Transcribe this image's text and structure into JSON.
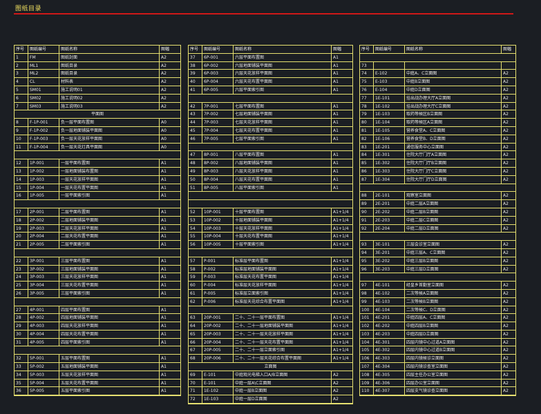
{
  "title": "图纸目录",
  "headers": [
    "序号",
    "图纸编号",
    "图纸名称",
    "图幅"
  ],
  "columns": [
    {
      "rows": [
        [
          "1",
          "FM",
          "图纸封面",
          "A2"
        ],
        [
          "2",
          "ML1",
          "图纸目录",
          "A2"
        ],
        [
          "3",
          "ML2",
          "图纸目录",
          "A2"
        ],
        [
          "4",
          "CL",
          "材料表",
          "A2"
        ],
        [
          "5",
          "SM01",
          "施工说明01",
          "A2"
        ],
        [
          "6",
          "SM02",
          "施工说明02",
          "A2"
        ],
        [
          "7",
          "SM03",
          "施工说明03",
          "A2"
        ],
        {
          "section": "平面图"
        },
        [
          "8",
          "F-1P-001",
          "负一层平面布置图",
          "A0"
        ],
        [
          "9",
          "F-1P-002",
          "负一层地面铺装平面图",
          "A0"
        ],
        [
          "10",
          "F-1P-003",
          "负一层天花放样平面图",
          "A0"
        ],
        [
          "11",
          "F-1P-004",
          "负一层天花灯具平面图",
          "A0"
        ],
        {
          "gap": true
        },
        [
          "12",
          "1P-001",
          "一层平面布置图",
          "A1"
        ],
        [
          "13",
          "1P-002",
          "一层地面铺装布置图",
          "A1"
        ],
        [
          "14",
          "1P-003",
          "一层天花放样平面图",
          "A1"
        ],
        [
          "15",
          "1P-004",
          "一层天花布置平面图",
          "A1"
        ],
        [
          "16",
          "1P-005",
          "一层平面索引图",
          "A1"
        ],
        {
          "gap": true
        },
        [
          "17",
          "2P-001",
          "二层平面布置图",
          "A1"
        ],
        [
          "18",
          "2P-002",
          "二层地面铺装平面图",
          "A1"
        ],
        [
          "19",
          "2P-003",
          "二层天花放样平面图",
          "A1"
        ],
        [
          "20",
          "2P-004",
          "二层天花布置平面图",
          "A1"
        ],
        [
          "21",
          "2P-005",
          "二层平面索引图",
          "A1"
        ],
        {
          "gap": true
        },
        [
          "22",
          "3P-001",
          "三层平面布置图",
          "A1"
        ],
        [
          "23",
          "3P-002",
          "三层地面铺装平面图",
          "A1"
        ],
        [
          "24",
          "3P-003",
          "三层天花放样平面图",
          "A1"
        ],
        [
          "25",
          "3P-004",
          "三层天花布置平面图",
          "A1"
        ],
        [
          "26",
          "3P-005",
          "三层平面索引图",
          "A1"
        ],
        {
          "gap": true
        },
        [
          "27",
          "4P-001",
          "四层平面布置图",
          "A1"
        ],
        [
          "28",
          "4P-002",
          "四层地面铺装平面图",
          "A1"
        ],
        [
          "29",
          "4P-003",
          "四层天花放样平面图",
          "A1"
        ],
        [
          "30",
          "4P-004",
          "四层天花布置平面图",
          "A1"
        ],
        [
          "31",
          "4P-005",
          "四层平面索引图",
          "A1"
        ],
        {
          "gap": true
        },
        [
          "32",
          "5P-001",
          "五层平面布置图",
          "A1"
        ],
        [
          "33",
          "5P-002",
          "五层地面铺装平面图",
          "A1"
        ],
        [
          "34",
          "5P-003",
          "五层天花放样平面图",
          "A1"
        ],
        [
          "35",
          "5P-004",
          "五层天花布置平面图",
          "A1"
        ],
        [
          "36",
          "5P-005",
          "五层平面索引图",
          "A1"
        ]
      ]
    },
    {
      "rows": [
        [
          "37",
          "6P-001",
          "六层平面布置图",
          "A1"
        ],
        [
          "38",
          "6P-002",
          "六层地面铺装平面图",
          "A1"
        ],
        [
          "39",
          "6P-003",
          "六层天花放样平面图",
          "A1"
        ],
        [
          "40",
          "6P-004",
          "六层天花布置平面图",
          "A1"
        ],
        [
          "41",
          "6P-005",
          "六层平面索引图",
          "A1"
        ],
        {
          "gap": true
        },
        [
          "42",
          "7P-001",
          "七层平面布置图",
          "A1"
        ],
        [
          "43",
          "7P-002",
          "七层地面铺装平面图",
          "A1"
        ],
        [
          "44",
          "7P-003",
          "七层天花放样平面图",
          "A1"
        ],
        [
          "45",
          "7P-004",
          "七层天花布置平面图",
          "A1"
        ],
        [
          "46",
          "7P-005",
          "七层平面索引图",
          "A1"
        ],
        {
          "gap": true
        },
        [
          "47",
          "8P-001",
          "八层平面布置图",
          "A1"
        ],
        [
          "48",
          "8P-002",
          "八层地面铺装平面图",
          "A1"
        ],
        [
          "49",
          "8P-003",
          "八层天花放样平面图",
          "A1"
        ],
        [
          "50",
          "8P-004",
          "八层天花布置平面图",
          "A1"
        ],
        [
          "51",
          "8P-005",
          "八层平面索引图",
          "A1"
        ],
        {
          "gap": true
        },
        {
          "gap": true
        },
        [
          "52",
          "10P-001",
          "十层平面布置图",
          "A1+1/4"
        ],
        [
          "53",
          "10P-002",
          "十层地面铺装平面图",
          "A1+1/4"
        ],
        [
          "54",
          "10P-003",
          "十层天花放样平面图",
          "A1+1/4"
        ],
        [
          "55",
          "10P-004",
          "十层天花布置平面图",
          "A1+1/4"
        ],
        [
          "56",
          "10P-005",
          "十层平面索引图",
          "A1+1/4"
        ],
        {
          "gap": true
        },
        [
          "57",
          "P-001",
          "标准层平面布置图",
          "A1+1/4"
        ],
        [
          "58",
          "P-002",
          "标准层地面铺装平面图",
          "A1+1/4"
        ],
        [
          "59",
          "P-003",
          "标准层天花布置平面图",
          "A1+1/4"
        ],
        [
          "60",
          "P-004",
          "标准层天花放样平面图",
          "A1+1/4"
        ],
        [
          "61",
          "P-005",
          "标准层立面索引图",
          "A1+1/4"
        ],
        [
          "62",
          "P-006",
          "标准层天花综合布置平面图",
          "A1+1/4"
        ],
        {
          "gap": true
        },
        [
          "63",
          "20P-001",
          "二十、二十一层平面布置图",
          "A1+1/4"
        ],
        [
          "64",
          "20P-002",
          "二十、二十一层地面铺装平面图",
          "A1+1/4"
        ],
        [
          "65",
          "20P-003",
          "二十、二十一层天花放样平面图",
          "A1+1/4"
        ],
        [
          "66",
          "20P-004",
          "二十、二十一层天花布置平面图",
          "A1+1/4"
        ],
        [
          "67",
          "20P-005",
          "二十、二十一层立面索引图",
          "A1+1/4"
        ],
        [
          "68",
          "20P-006",
          "二十、二十一层天花综合布置平面图",
          "A1+1/4"
        ],
        {
          "section": "立面图"
        },
        [
          "69",
          "E-101",
          "中庭观光电梯入口A/B立面图",
          "A2"
        ],
        [
          "70",
          "E-101",
          "中庭一层A\\C立面图",
          "A2"
        ],
        [
          "71",
          "1E-102",
          "中庭一层B立面图",
          "A2"
        ],
        [
          "72",
          "1E-103",
          "中庭一层D立面图",
          "A2"
        ]
      ]
    },
    {
      "rows": [
        {
          "gap": true
        },
        [
          "73",
          "",
          "",
          ""
        ],
        [
          "74",
          "E-102",
          "中庭A、C立面图",
          "A2"
        ],
        [
          "75",
          "E-103",
          "中庭B立面图",
          "A2"
        ],
        [
          "76",
          "E-104",
          "中庭D立面图",
          "A2"
        ],
        [
          "77",
          "1E-101",
          "挂出战办理大厅A立面图",
          "A2"
        ],
        [
          "78",
          "1E-102",
          "挂出战办理大厅C立面图",
          "A2"
        ],
        [
          "79",
          "1E-103",
          "取药等候区B立面图",
          "A2"
        ],
        [
          "80",
          "1E-104",
          "取药等候区A立面图",
          "A2"
        ],
        [
          "81",
          "1E-105",
          "营养食堂A、C立面图",
          "A2"
        ],
        [
          "82",
          "1E-106",
          "营养食堂B、D立面图",
          "A2"
        ],
        [
          "83",
          "1E-201",
          "通信服务中心立面图",
          "A2"
        ],
        [
          "84",
          "1E-301",
          "住院大厅门厅A立面图",
          "A2"
        ],
        [
          "85",
          "1E-302",
          "住院大厅门厅B立面图",
          "A2"
        ],
        [
          "86",
          "1E-303",
          "住院大厅门厅C立面图",
          "A2"
        ],
        [
          "87",
          "1E-304",
          "住院大厅门厅D立面图",
          "A2"
        ],
        {
          "gap": true
        },
        [
          "88",
          "2E-101",
          "观察室立面图",
          "A2"
        ],
        [
          "89",
          "2E-201",
          "中庭二层A立面图",
          "A2"
        ],
        [
          "90",
          "2E-202",
          "中庭二层B立面图",
          "A2"
        ],
        [
          "91",
          "2E-203",
          "中庭二层C立面图",
          "A2"
        ],
        [
          "92",
          "2E-204",
          "中庭二层D立面图",
          "A2"
        ],
        {
          "gap": true
        },
        [
          "93",
          "3E-101",
          "三层会诊室立面图",
          "A2"
        ],
        [
          "94",
          "3E-201",
          "中庭三层A、C立面图",
          "A2"
        ],
        [
          "95",
          "3E-202",
          "中庭三层B立面图",
          "A2"
        ],
        [
          "96",
          "3E-203",
          "中庭三层D立面图",
          "A2"
        ],
        {
          "gap": true
        },
        [
          "97",
          "4E-101",
          "经皇乡首勤室立面图",
          "A2"
        ],
        [
          "98",
          "4E-102",
          "二次等候A立面图",
          "A2"
        ],
        [
          "99",
          "4E-103",
          "二次等候B立面图",
          "A2"
        ],
        [
          "100",
          "4E-104",
          "二次等候C、D立面图",
          "A2"
        ],
        [
          "101",
          "4E-201",
          "中庭四层A、C立面图",
          "A2"
        ],
        [
          "102",
          "4E-202",
          "中庭四层B立面图",
          "A2"
        ],
        [
          "103",
          "4E-203",
          "中庭四层D立面图",
          "A2"
        ],
        [
          "104",
          "4E-301",
          "四层内镜中心过道A立面图",
          "A2"
        ],
        [
          "105",
          "4E-302",
          "四层内镜中心过道B立面图",
          "A2"
        ],
        [
          "106",
          "4E-303",
          "四层内镜候诊立面图",
          "A2"
        ],
        [
          "107",
          "4E-304",
          "四层内镜诊查室立面图",
          "A2"
        ],
        [
          "108",
          "4E-305",
          "四层主任办公室立面图",
          "A2"
        ],
        [
          "109",
          "4E-306",
          "四层办公室立面图",
          "A2"
        ],
        [
          "110",
          "4E-307",
          "四层支气镜诊查立面图",
          "A2"
        ]
      ]
    }
  ]
}
